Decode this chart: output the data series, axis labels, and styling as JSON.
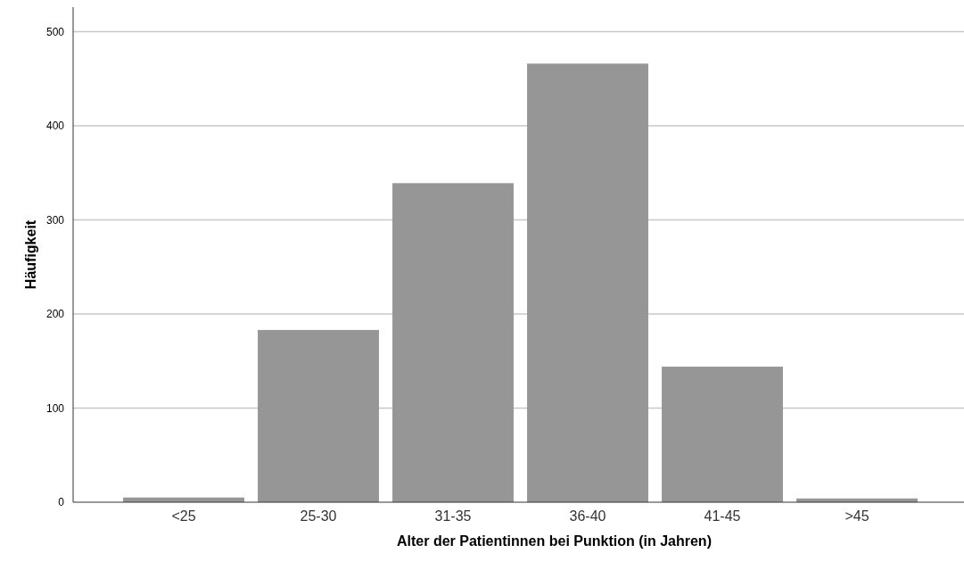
{
  "chart_data": {
    "type": "bar",
    "xlabel": "Alter der Patientinnen bei Punktion (in Jahren)",
    "ylabel": "Häufigkeit",
    "categories": [
      "<25",
      "25-30",
      "31-35",
      "36-40",
      "41-45",
      ">45"
    ],
    "values": [
      5,
      183,
      339,
      466,
      144,
      4
    ],
    "color": "#969696",
    "ylim": [
      0,
      526
    ],
    "yticks": [
      0,
      100,
      200,
      300,
      400,
      500
    ],
    "grid": "y"
  }
}
